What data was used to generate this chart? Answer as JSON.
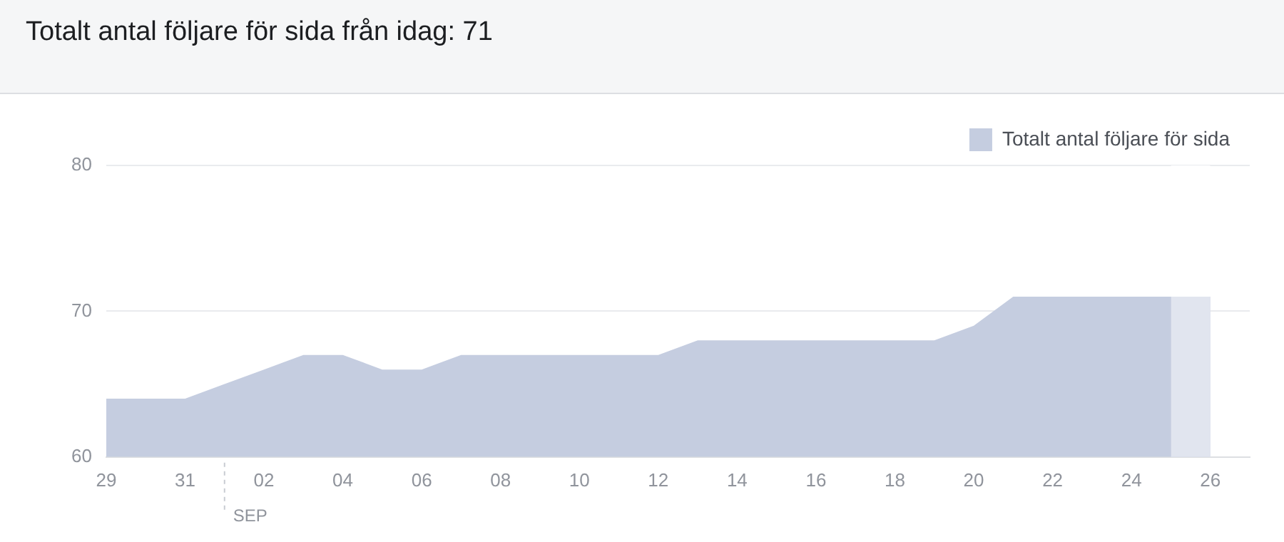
{
  "chart_data": {
    "type": "area",
    "title": "Totalt antal följare för sida från idag: 71",
    "x": [
      "--08-29",
      "--08-30",
      "--08-31",
      "--09-01",
      "--09-02",
      "--09-03",
      "--09-04",
      "--09-05",
      "--09-06",
      "--09-07",
      "--09-08",
      "--09-09",
      "--09-10",
      "--09-11",
      "--09-12",
      "--09-13",
      "--09-14",
      "--09-15",
      "--09-16",
      "--09-17",
      "--09-18",
      "--09-19",
      "--09-20",
      "--09-21",
      "--09-22",
      "--09-23",
      "--09-24",
      "--09-25",
      "--09-26"
    ],
    "series": [
      {
        "name": "Totalt antal följare för sida",
        "color": "#c5cde0",
        "values": [
          64,
          64,
          64,
          65,
          66,
          67,
          67,
          66,
          66,
          67,
          67,
          67,
          67,
          67,
          67,
          68,
          68,
          68,
          68,
          68,
          68,
          68,
          69,
          71,
          71,
          71,
          71,
          71,
          71
        ]
      }
    ],
    "xlim": [
      "--08-29",
      "--09-27"
    ],
    "xticks": [
      {
        "value": "--08-29",
        "label": "29"
      },
      {
        "value": "--08-31",
        "label": "31"
      },
      {
        "value": "--09-02",
        "label": "02"
      },
      {
        "value": "--09-04",
        "label": "04"
      },
      {
        "value": "--09-06",
        "label": "06"
      },
      {
        "value": "--09-08",
        "label": "08"
      },
      {
        "value": "--09-10",
        "label": "10"
      },
      {
        "value": "--09-12",
        "label": "12"
      },
      {
        "value": "--09-14",
        "label": "14"
      },
      {
        "value": "--09-16",
        "label": "16"
      },
      {
        "value": "--09-18",
        "label": "18"
      },
      {
        "value": "--09-20",
        "label": "20"
      },
      {
        "value": "--09-22",
        "label": "22"
      },
      {
        "value": "--09-24",
        "label": "24"
      },
      {
        "value": "--09-26",
        "label": "26"
      }
    ],
    "ylim": [
      60,
      80
    ],
    "yticks": [
      60,
      70,
      80
    ],
    "grid": "y",
    "legend": "top right",
    "ref_lines": [
      {
        "axis": "x",
        "value": "--09-01",
        "label": "SEP",
        "line_style": "dashed",
        "color": "#c8ccd2"
      }
    ],
    "bands": [
      {
        "axis": "x",
        "from": "--09-25",
        "to": "--09-26",
        "color": "#e1e5ef"
      }
    ]
  }
}
